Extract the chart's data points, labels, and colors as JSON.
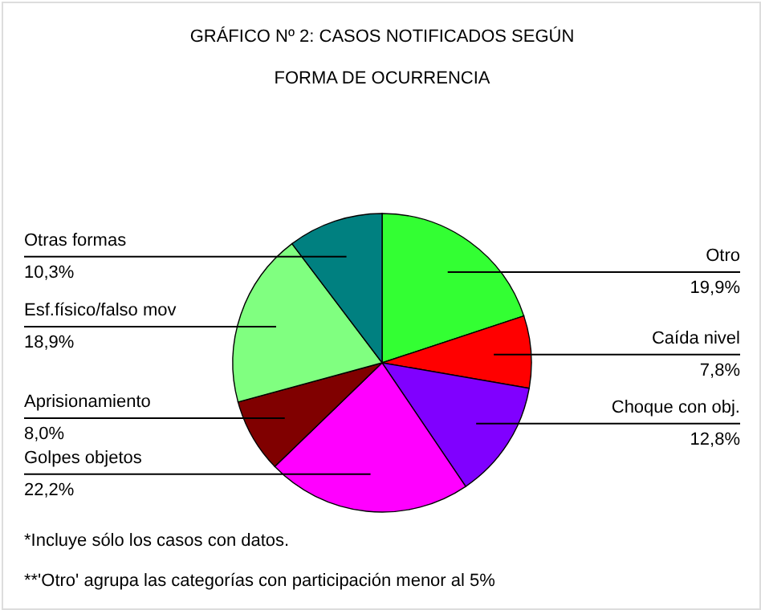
{
  "chart_data": {
    "type": "pie",
    "title": "GRÁFICO Nº 2: CASOS NOTIFICADOS SEGÚN FORMA DE OCURRENCIA",
    "categories": [
      "Otro",
      "Caída nivel",
      "Choque con  obj.",
      "Golpes objetos",
      "Aprisionamiento",
      "Esf.físico/falso mov",
      "Otras formas"
    ],
    "values": [
      19.9,
      7.8,
      12.8,
      22.2,
      8.0,
      18.9,
      10.3
    ],
    "value_labels": [
      "19,9%",
      "7,8%",
      "12,8%",
      "22,2%",
      "8,0%",
      "18,9%",
      "10,3%"
    ],
    "colors": [
      "#33ff33",
      "#ff0000",
      "#8000ff",
      "#ff00ff",
      "#800000",
      "#80ff80",
      "#008080"
    ],
    "annotations": [
      "*Incluye sólo los casos con datos.",
      "**'Otro' agrupa las categorías con participación menor al 5%"
    ]
  }
}
